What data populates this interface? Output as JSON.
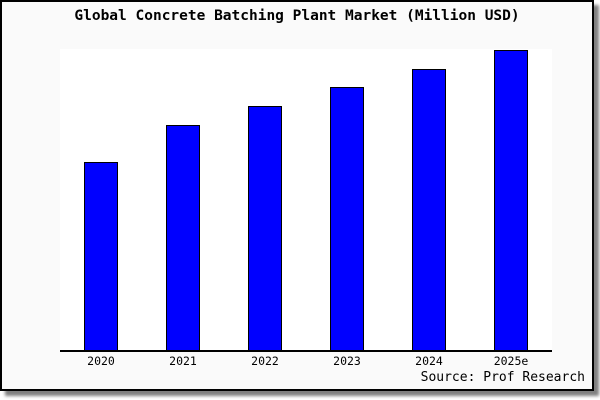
{
  "chart": {
    "title": "Global Concrete Batching Plant Market (Million USD)",
    "source": "Source: Prof Research"
  },
  "chart_data": {
    "type": "bar",
    "title": "Global Concrete Batching Plant Market (Million USD)",
    "categories": [
      "2020",
      "2021",
      "2022",
      "2023",
      "2024",
      "2025e"
    ],
    "values": [
      62.7,
      75.0,
      81.3,
      87.7,
      93.7,
      100.0
    ],
    "values_note": "No y-axis scale, gridlines or value labels are shown; values are relative bar heights with the 2025e bar = 100.",
    "xlabel": "",
    "ylabel": "",
    "ylim": [
      0,
      100.3
    ],
    "grid": false,
    "legend": "none",
    "bar_color": "#0000ff",
    "bar_border_color": "#000000",
    "axis_color": "#000000",
    "plot_background": "#ffffff",
    "figure_background": "#fafafa",
    "source": "Source: Prof Research"
  }
}
